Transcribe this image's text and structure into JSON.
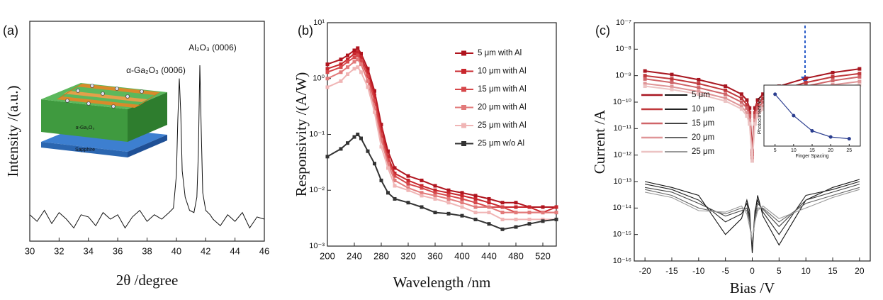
{
  "chart_data": [
    {
      "type": "line",
      "panel_label": "(a)",
      "xlabel": "2θ /degree",
      "ylabel": "Intensity /(a.u.)",
      "annotations": [
        "α-Ga₂O₃ (0006)",
        "Al₂O₃ (0006)"
      ],
      "inset_labels": [
        "α-Ga₂O₃",
        "Sapphire"
      ],
      "color": "#111111",
      "x": [
        30,
        30.5,
        31,
        31.5,
        32,
        32.5,
        33,
        33.5,
        34,
        34.5,
        35,
        35.5,
        36,
        36.5,
        37,
        37.5,
        38,
        38.5,
        39,
        39.5,
        39.8,
        40.0,
        40.1,
        40.2,
        40.3,
        40.4,
        40.6,
        40.9,
        41.2,
        41.4,
        41.5,
        41.6,
        41.7,
        41.8,
        42.0,
        42.3,
        42.5,
        43,
        43.5,
        44,
        44.5,
        45,
        45.5,
        46
      ],
      "values": [
        12,
        9,
        14,
        8,
        13,
        10,
        6,
        12,
        11,
        7,
        13,
        10,
        12,
        6,
        11,
        14,
        9,
        12,
        10,
        13,
        15,
        30,
        55,
        74,
        58,
        32,
        20,
        14,
        13,
        20,
        40,
        80,
        50,
        22,
        14,
        12,
        10,
        7,
        12,
        9,
        13,
        6,
        11,
        10
      ],
      "xlim": [
        30,
        46
      ],
      "xticks": [
        30,
        32,
        34,
        36,
        38,
        40,
        42,
        44,
        46
      ],
      "ylim": [
        0,
        100
      ]
    },
    {
      "type": "line",
      "panel_label": "(b)",
      "xlabel": "Wavelength /nm",
      "ylabel": "Responsivity /(A/W)",
      "log": true,
      "x": [
        200,
        220,
        230,
        240,
        245,
        250,
        260,
        270,
        280,
        290,
        300,
        320,
        340,
        360,
        380,
        400,
        420,
        440,
        460,
        480,
        500,
        520,
        540
      ],
      "series": [
        {
          "name": "5 μm with Al",
          "color": "#b0141e",
          "values": [
            1.8,
            2.2,
            2.6,
            3.2,
            3.5,
            2.8,
            1.5,
            0.6,
            0.15,
            0.05,
            0.025,
            0.018,
            0.015,
            0.012,
            0.01,
            0.009,
            0.008,
            0.007,
            0.006,
            0.006,
            0.005,
            0.005,
            0.005
          ]
        },
        {
          "name": "10 μm with Al",
          "color": "#c8262c",
          "values": [
            1.5,
            1.8,
            2.2,
            2.8,
            3.0,
            2.4,
            1.3,
            0.5,
            0.12,
            0.04,
            0.02,
            0.015,
            0.012,
            0.01,
            0.009,
            0.008,
            0.007,
            0.006,
            0.005,
            0.005,
            0.005,
            0.004,
            0.005
          ]
        },
        {
          "name": "15 μm with Al",
          "color": "#d6474a",
          "values": [
            1.3,
            1.6,
            2.0,
            2.4,
            2.6,
            2.1,
            1.1,
            0.4,
            0.1,
            0.035,
            0.018,
            0.013,
            0.011,
            0.009,
            0.008,
            0.007,
            0.006,
            0.005,
            0.005,
            0.004,
            0.004,
            0.004,
            0.004
          ]
        },
        {
          "name": "20 μm with Al",
          "color": "#e27a7a",
          "values": [
            1.0,
            1.3,
            1.6,
            2.0,
            2.2,
            1.8,
            0.9,
            0.3,
            0.08,
            0.03,
            0.015,
            0.011,
            0.009,
            0.008,
            0.007,
            0.006,
            0.005,
            0.005,
            0.004,
            0.004,
            0.004,
            0.004,
            0.004
          ]
        },
        {
          "name": "25 μm with Al",
          "color": "#f0b5b5",
          "values": [
            0.7,
            0.9,
            1.2,
            1.5,
            1.6,
            1.3,
            0.7,
            0.25,
            0.06,
            0.025,
            0.012,
            0.01,
            0.008,
            0.007,
            0.006,
            0.005,
            0.004,
            0.004,
            0.003,
            0.003,
            0.003,
            0.003,
            0.003
          ]
        },
        {
          "name": "25 μm w/o Al",
          "color": "#333333",
          "values": [
            0.04,
            0.055,
            0.07,
            0.09,
            0.1,
            0.085,
            0.05,
            0.03,
            0.015,
            0.009,
            0.007,
            0.006,
            0.005,
            0.004,
            0.0038,
            0.0035,
            0.003,
            0.0025,
            0.002,
            0.0022,
            0.0025,
            0.0028,
            0.003
          ]
        }
      ],
      "xlim": [
        200,
        540
      ],
      "xticks": [
        200,
        240,
        280,
        320,
        360,
        400,
        440,
        480,
        520
      ],
      "ylim": [
        0.001,
        10
      ],
      "yticks": [
        {
          "value": 10,
          "label": "10¹"
        },
        {
          "value": 1,
          "label": "10⁰"
        },
        {
          "value": 0.1,
          "label": "10⁻¹"
        },
        {
          "value": 0.01,
          "label": "10⁻²"
        },
        {
          "value": 0.001,
          "label": "10⁻³"
        }
      ]
    },
    {
      "type": "line",
      "panel_label": "(c)",
      "xlabel": "Bias /V",
      "ylabel": "Current /A",
      "log": true,
      "x": [
        -20,
        -15,
        -10,
        -5,
        -2,
        -1,
        -0.5,
        0,
        0.5,
        1,
        2,
        5,
        10,
        15,
        20
      ],
      "series": [
        {
          "name": "5  μm",
          "color": "#a81620",
          "values": [
            1.5e-09,
            1.1e-09,
            7e-10,
            4e-10,
            2e-10,
            1.2e-10,
            6e-11,
            1.5e-12,
            6e-11,
            1.2e-10,
            2e-10,
            4e-10,
            8e-10,
            1.3e-09,
            1.8e-09
          ],
          "dark": {
            "color": "#111111",
            "values": [
              1e-13,
              6e-14,
              3e-14,
              1e-15,
              4e-15,
              2e-14,
              8e-15,
              2e-16,
              6e-15,
              3e-14,
              5e-15,
              4e-16,
              2e-14,
              6e-14,
              1.2e-13
            ]
          }
        },
        {
          "name": "10  μm",
          "color": "#c0383c",
          "values": [
            1e-09,
            7.5e-10,
            5e-10,
            2.8e-10,
            1.4e-10,
            8e-11,
            4e-11,
            1.2e-12,
            4e-11,
            8e-11,
            1.4e-10,
            2.8e-10,
            5.5e-10,
            9e-10,
            1.2e-09
          ],
          "dark": {
            "color": "#222222",
            "values": [
              8e-14,
              5e-14,
              2e-14,
              3e-15,
              6e-15,
              1.5e-14,
              5e-15,
              3e-16,
              8e-15,
              2e-14,
              7e-15,
              1e-15,
              3e-14,
              5e-14,
              1e-13
            ]
          }
        },
        {
          "name": "15  μm",
          "color": "#cf6468",
          "values": [
            7.5e-10,
            5.5e-10,
            3.5e-10,
            2e-10,
            1e-10,
            6e-11,
            3e-11,
            1e-12,
            3e-11,
            6e-11,
            1e-10,
            2e-10,
            4e-10,
            6.5e-10,
            9e-10
          ],
          "dark": {
            "color": "#444444",
            "values": [
              6e-14,
              4e-14,
              1.5e-14,
              5e-15,
              8e-15,
              1e-14,
              4e-15,
              4e-16,
              5e-15,
              1.5e-14,
              9e-15,
              2e-15,
              2e-14,
              4e-14,
              8e-14
            ]
          }
        },
        {
          "name": "20  μm",
          "color": "#df9597",
          "values": [
            5e-10,
            3.8e-10,
            2.5e-10,
            1.4e-10,
            7e-11,
            4e-11,
            2e-11,
            8e-13,
            2e-11,
            4e-11,
            7e-11,
            1.4e-10,
            2.8e-10,
            4.5e-10,
            6e-10
          ],
          "dark": {
            "color": "#666666",
            "values": [
              5e-14,
              3e-14,
              1e-14,
              6e-15,
              1e-14,
              8e-15,
              3e-15,
              5e-16,
              4e-15,
              1e-14,
              1e-14,
              3e-15,
              1.5e-14,
              3e-14,
              6e-14
            ]
          }
        },
        {
          "name": "25  μm",
          "color": "#ecc3c3",
          "values": [
            4e-10,
            3e-10,
            2e-10,
            1.1e-10,
            5.5e-11,
            3e-11,
            1.5e-11,
            6e-13,
            1.5e-11,
            3e-11,
            5.5e-11,
            1.1e-10,
            2.2e-10,
            3.5e-10,
            4.5e-10
          ],
          "dark": {
            "color": "#999999",
            "values": [
              4e-14,
              2.5e-14,
              8e-15,
              7e-15,
              1.2e-14,
              6e-15,
              2e-15,
              6e-16,
              3e-15,
              8e-15,
              1.2e-14,
              4e-15,
              1e-14,
              2.5e-14,
              5e-14
            ]
          }
        }
      ],
      "xlim": [
        -22,
        22
      ],
      "xticks": [
        -20,
        -15,
        -10,
        -5,
        0,
        5,
        10,
        15,
        20
      ],
      "ylim": [
        1e-16,
        1e-07
      ],
      "yticks": [
        {
          "value": 1e-07,
          "label": "10⁻⁷"
        },
        {
          "value": 1e-08,
          "label": "10⁻⁸"
        },
        {
          "value": 1e-09,
          "label": "10⁻⁹"
        },
        {
          "value": 1e-10,
          "label": "10⁻¹⁰"
        },
        {
          "value": 1e-11,
          "label": "10⁻¹¹"
        },
        {
          "value": 1e-12,
          "label": "10⁻¹²"
        },
        {
          "value": 1e-13,
          "label": "10⁻¹³"
        },
        {
          "value": 1e-14,
          "label": "10⁻¹⁴"
        },
        {
          "value": 1e-15,
          "label": "10⁻¹⁵"
        },
        {
          "value": 1e-16,
          "label": "10⁻¹⁶"
        }
      ],
      "inset": {
        "type": "line",
        "xlabel": "Finger Spacing",
        "ylabel": "Photocurrent /nA",
        "color": "#2a3d8f",
        "x": [
          5,
          10,
          15,
          20,
          25
        ],
        "values": [
          8.5,
          5,
          2.5,
          1.5,
          1.2
        ],
        "xlim": [
          2,
          28
        ],
        "xticks": [
          5,
          10,
          15,
          20,
          25
        ],
        "ylim": [
          0,
          10
        ]
      }
    }
  ]
}
